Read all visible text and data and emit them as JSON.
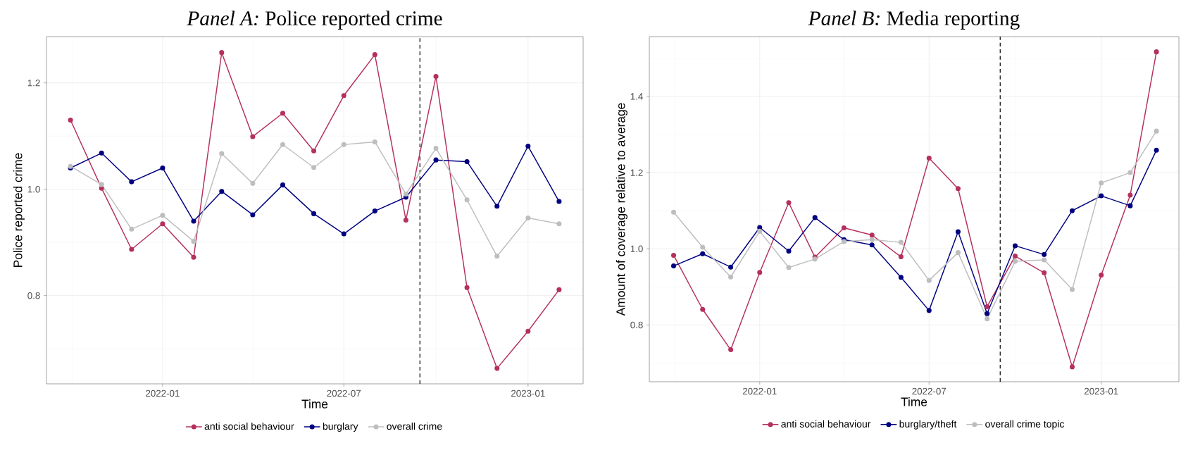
{
  "chart_data": [
    {
      "type": "line",
      "title": "*Panel A:* Police reported crime",
      "xlabel": "Time",
      "ylabel": "Police reported crime",
      "x": [
        "2021-10",
        "2021-11",
        "2021-12",
        "2022-01",
        "2022-02",
        "2022-03",
        "2022-04",
        "2022-05",
        "2022-06",
        "2022-07",
        "2022-08",
        "2022-09",
        "2022-10",
        "2022-11",
        "2022-12",
        "2023-01",
        "2023-02"
      ],
      "series": [
        {
          "name": "anti social behaviour",
          "color": "#b5305f",
          "values": [
            1.13,
            1.002,
            0.887,
            0.935,
            0.872,
            1.257,
            1.099,
            1.143,
            1.072,
            1.176,
            1.253,
            0.942,
            1.212,
            0.815,
            0.663,
            0.733,
            0.811
          ]
        },
        {
          "name": "burglary",
          "color": "#000080",
          "values": [
            1.04,
            1.068,
            1.014,
            1.04,
            0.94,
            0.996,
            0.952,
            1.008,
            0.954,
            0.916,
            0.959,
            0.985,
            1.055,
            1.052,
            0.968,
            1.081,
            0.977
          ]
        },
        {
          "name": "overall crime",
          "color": "#bebebe",
          "values": [
            1.043,
            1.009,
            0.925,
            0.951,
            0.902,
            1.067,
            1.011,
            1.084,
            1.041,
            1.084,
            1.089,
            0.991,
            1.077,
            0.98,
            0.874,
            0.946,
            0.935
          ]
        }
      ],
      "xlim": [
        "2021-09-07",
        "2023-02-25"
      ],
      "xticks": [
        "2022-01",
        "2022-07",
        "2023-01"
      ],
      "ylim": [
        0.634,
        1.287
      ],
      "yticks": [
        0.8,
        {
          "value": 1,
          "label": "1.0"
        },
        1.2
      ],
      "ref_lines": [
        {
          "axis": "x",
          "value": "2022-09-15",
          "color": "#000000",
          "line_style": "dashed"
        }
      ],
      "grid": true,
      "legend": "bottom",
      "marker": "circle",
      "line_style": "solid"
    },
    {
      "type": "line",
      "title": "*Panel B:* Media reporting",
      "xlabel": "Time",
      "ylabel": "Amount of coverage relative to average",
      "x": [
        "2021-10",
        "2021-11",
        "2021-12",
        "2022-01",
        "2022-02",
        "2022-03",
        "2022-04",
        "2022-05",
        "2022-06",
        "2022-07",
        "2022-08",
        "2022-09",
        "2022-10",
        "2022-11",
        "2022-12",
        "2023-01",
        "2023-02",
        "2023-03"
      ],
      "series": [
        {
          "name": "anti social behaviour",
          "color": "#b5305f",
          "values": [
            0.983,
            0.841,
            0.735,
            0.938,
            1.121,
            0.978,
            1.055,
            1.036,
            0.979,
            1.238,
            1.158,
            0.848,
            0.981,
            0.937,
            0.69,
            0.931,
            1.141,
            1.517
          ]
        },
        {
          "name": "burglary/theft",
          "color": "#000080",
          "values": [
            0.955,
            0.987,
            0.952,
            1.056,
            0.994,
            1.082,
            1.024,
            1.01,
            0.925,
            0.838,
            1.045,
            0.83,
            1.008,
            0.985,
            1.1,
            1.139,
            1.113,
            1.259
          ]
        },
        {
          "name": "overall crime topic",
          "color": "#bebebe",
          "values": [
            1.096,
            1.004,
            0.926,
            1.046,
            0.951,
            0.973,
            1.019,
            1.024,
            1.017,
            0.917,
            0.99,
            0.816,
            0.967,
            0.971,
            0.893,
            1.173,
            1.2,
            1.309
          ]
        }
      ],
      "xlim": [
        "2021-09-05",
        "2023-03-25"
      ],
      "xticks": [
        "2022-01",
        "2022-07",
        "2023-01"
      ],
      "ylim": [
        0.651,
        1.557
      ],
      "yticks": [
        0.8,
        {
          "value": 1,
          "label": "1.0"
        },
        1.2,
        1.4
      ],
      "ref_lines": [
        {
          "axis": "x",
          "value": "2022-09-15",
          "color": "#000000",
          "line_style": "dashed"
        }
      ],
      "grid": true,
      "legend": "bottom",
      "marker": "circle",
      "line_style": "solid"
    }
  ]
}
